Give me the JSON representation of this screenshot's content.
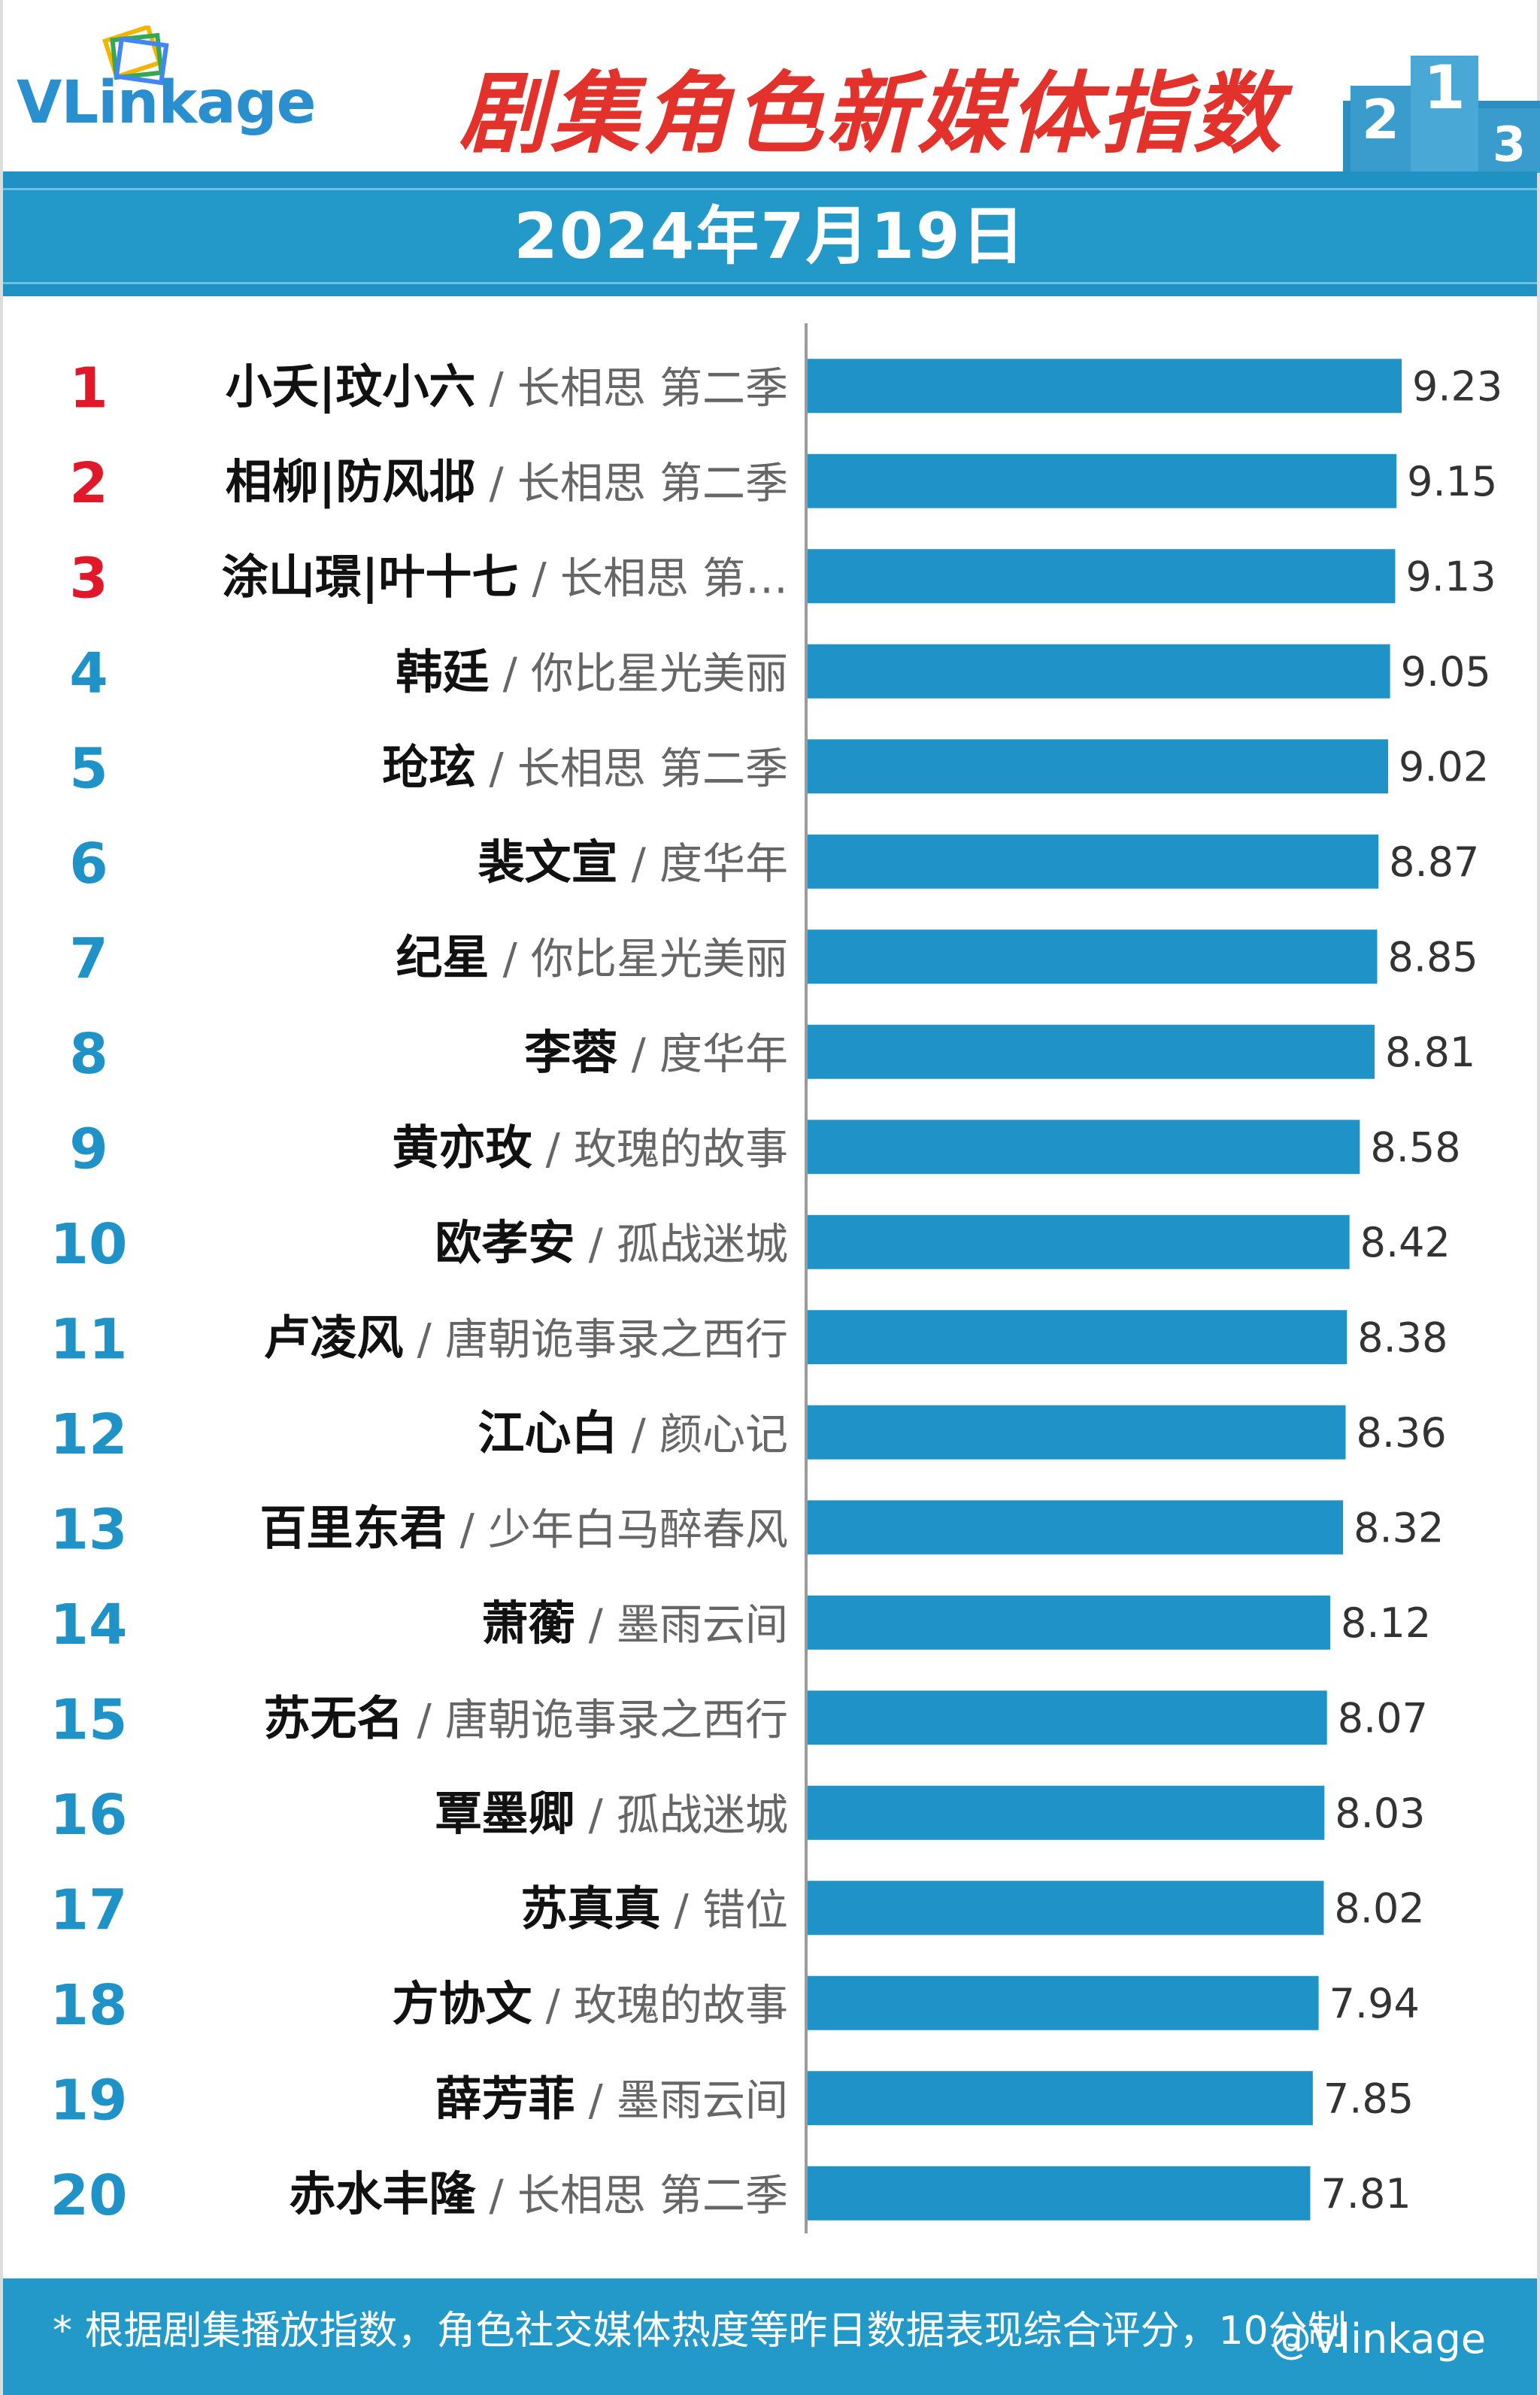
{
  "header": {
    "logo_text": "VLinkage",
    "title": "剧集角色新媒体指数",
    "date": "2024年7月19日"
  },
  "colors": {
    "bar": "#1f93c8",
    "rank_top3": "#e0182a",
    "rank_other": "#1f93c8",
    "title": "#e3312b",
    "band": "#2399c9"
  },
  "chart_data": {
    "type": "bar",
    "orientation": "horizontal",
    "xlim": [
      0,
      9.23
    ],
    "grid": false,
    "categories": [
      {
        "rank": "1",
        "name": "小夭|玟小六",
        "drama": "长相思 第二季"
      },
      {
        "rank": "2",
        "name": "相柳|防风邶",
        "drama": "长相思 第二季"
      },
      {
        "rank": "3",
        "name": "涂山璟|叶十七",
        "drama": "长相思 第…"
      },
      {
        "rank": "4",
        "name": "韩廷",
        "drama": "你比星光美丽"
      },
      {
        "rank": "5",
        "name": "玱玹",
        "drama": "长相思 第二季"
      },
      {
        "rank": "6",
        "name": "裴文宣",
        "drama": "度华年"
      },
      {
        "rank": "7",
        "name": "纪星",
        "drama": "你比星光美丽"
      },
      {
        "rank": "8",
        "name": "李蓉",
        "drama": "度华年"
      },
      {
        "rank": "9",
        "name": "黄亦玫",
        "drama": "玫瑰的故事"
      },
      {
        "rank": "10",
        "name": "欧孝安",
        "drama": "孤战迷城"
      },
      {
        "rank": "11",
        "name": "卢凌风",
        "drama": "唐朝诡事录之西行"
      },
      {
        "rank": "12",
        "name": "江心白",
        "drama": "颜心记"
      },
      {
        "rank": "13",
        "name": "百里东君",
        "drama": "少年白马醉春风"
      },
      {
        "rank": "14",
        "name": "萧蘅",
        "drama": "墨雨云间"
      },
      {
        "rank": "15",
        "name": "苏无名",
        "drama": "唐朝诡事录之西行"
      },
      {
        "rank": "16",
        "name": "覃墨卿",
        "drama": "孤战迷城"
      },
      {
        "rank": "17",
        "name": "苏真真",
        "drama": "错位"
      },
      {
        "rank": "18",
        "name": "方协文",
        "drama": "玫瑰的故事"
      },
      {
        "rank": "19",
        "name": "薛芳菲",
        "drama": "墨雨云间"
      },
      {
        "rank": "20",
        "name": "赤水丰隆",
        "drama": "长相思 第二季"
      }
    ],
    "values": [
      9.23,
      9.15,
      9.13,
      9.05,
      9.02,
      8.87,
      8.85,
      8.81,
      8.58,
      8.42,
      8.38,
      8.36,
      8.32,
      8.12,
      8.07,
      8.03,
      8.02,
      7.94,
      7.85,
      7.81
    ],
    "value_labels": [
      "9.23",
      "9.15",
      "9.13",
      "9.05",
      "9.02",
      "8.87",
      "8.85",
      "8.81",
      "8.58",
      "8.42",
      "8.38",
      "8.36",
      "8.32",
      "8.12",
      "8.07",
      "8.03",
      "8.02",
      "7.94",
      "7.85",
      "7.81"
    ]
  },
  "footer": {
    "note": "* 根据剧集播放指数，角色社交媒体热度等昨日数据表现综合评分，10分制",
    "watermark": "@Vlinkage"
  }
}
